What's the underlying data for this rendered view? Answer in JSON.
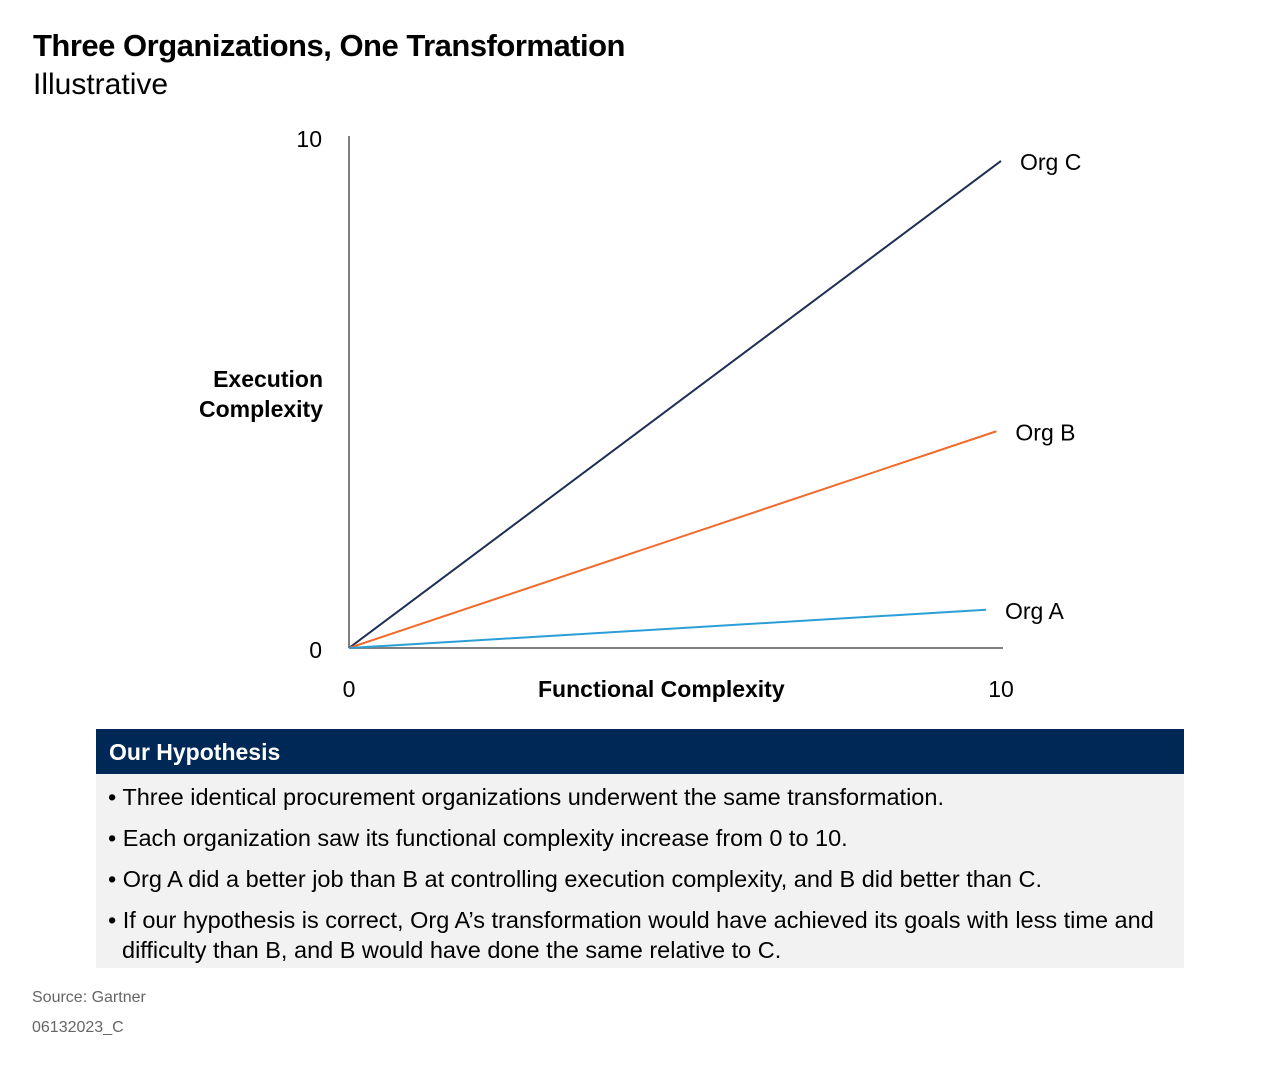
{
  "title": "Three Organizations, One Transformation",
  "subtitle": "Illustrative",
  "chart_data": {
    "type": "line",
    "xlabel": "Functional Complexity",
    "ylabel": "Execution Complexity",
    "xlim": [
      0,
      10
    ],
    "ylim": [
      0,
      10
    ],
    "x_ticks": [
      "0",
      "10"
    ],
    "y_ticks": [
      "0",
      "10"
    ],
    "grid": false,
    "series": [
      {
        "name": "Org C",
        "color": "#1d2f55",
        "points": [
          [
            0,
            0
          ],
          [
            10,
            9.55
          ]
        ]
      },
      {
        "name": "Org B",
        "color": "#f26a2a",
        "points": [
          [
            0,
            0
          ],
          [
            9.93,
            4.25
          ]
        ]
      },
      {
        "name": "Org A",
        "color": "#2a9fd6",
        "points": [
          [
            0,
            0
          ],
          [
            9.77,
            0.75
          ]
        ]
      }
    ]
  },
  "hypothesis": {
    "heading": "Our Hypothesis",
    "bullets": [
      "Three identical procurement organizations underwent the same transformation.",
      "Each organization saw its functional complexity increase from 0 to 10.",
      "Org A did a better job than B at controlling execution complexity, and B did better than C.",
      "If our hypothesis is correct, Org A’s transformation would have achieved its goals with less time and difficulty than B, and B would have done the same relative to C."
    ]
  },
  "source": "Source: Gartner",
  "code": "06132023_C"
}
